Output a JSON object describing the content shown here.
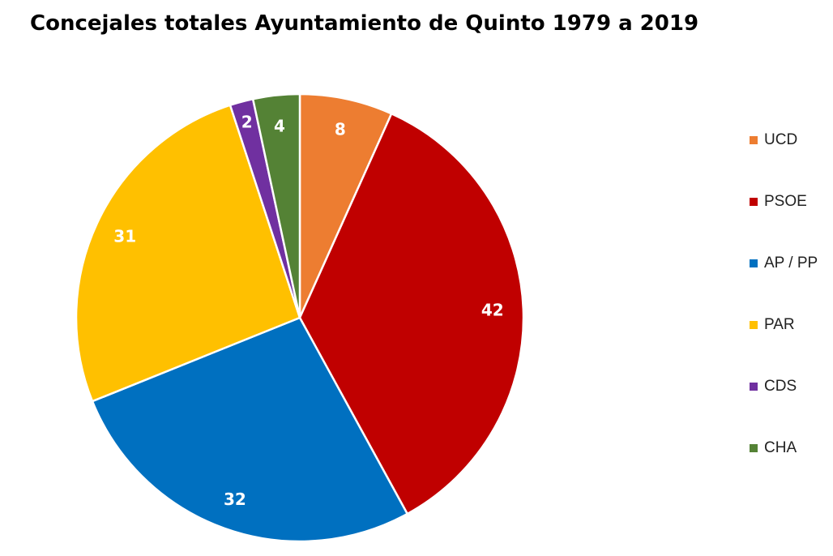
{
  "chart_data": {
    "type": "pie",
    "title": "Concejales totales Ayuntamiento de Quinto 1979 a 2019",
    "legend_position": "right",
    "slices": [
      {
        "label": "UCD",
        "value": 8,
        "color": "#ED7D31"
      },
      {
        "label": "PSOE",
        "value": 42,
        "color": "#C00000"
      },
      {
        "label": "AP / PP",
        "value": 32,
        "color": "#0070C0"
      },
      {
        "label": "PAR",
        "value": 31,
        "color": "#FFC000"
      },
      {
        "label": "CDS",
        "value": 2,
        "color": "#7030A0"
      },
      {
        "label": "CHA",
        "value": 4,
        "color": "#548235"
      }
    ]
  }
}
